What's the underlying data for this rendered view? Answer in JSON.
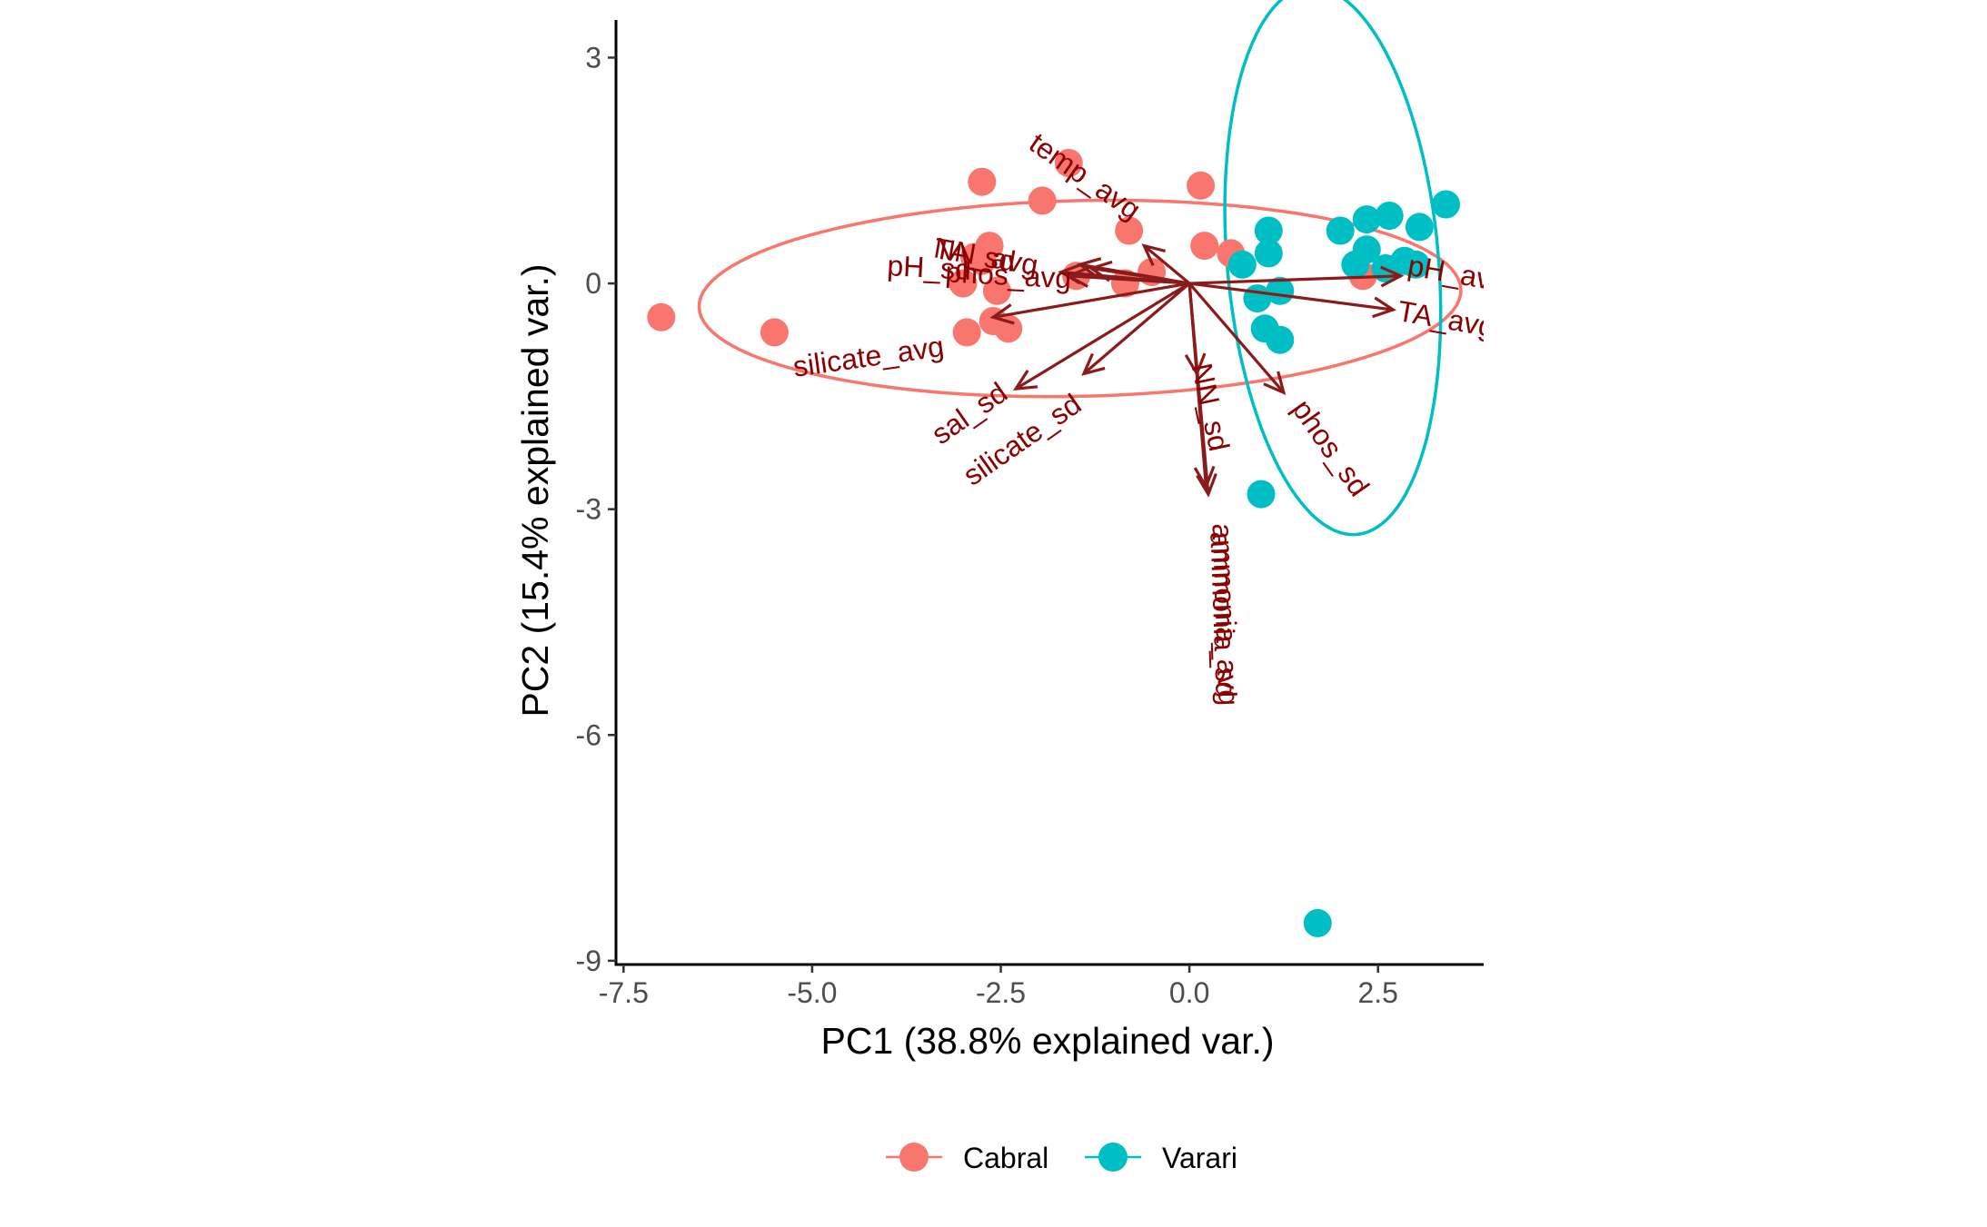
{
  "chart_data": {
    "type": "scatter",
    "xlabel": "PC1 (38.8% explained var.)",
    "ylabel": "PC2 (15.4% explained var.)",
    "xlim": [
      -7.6,
      3.9
    ],
    "ylim": [
      -9.05,
      3.5
    ],
    "x_ticks": [
      -7.5,
      -5.0,
      -2.5,
      0.0,
      2.5
    ],
    "x_tick_labels": [
      "-7.5",
      "-5.0",
      "-2.5",
      "0.0",
      "2.5"
    ],
    "y_ticks": [
      3,
      0,
      -3,
      -6,
      -9
    ],
    "y_tick_labels": [
      "3",
      "0",
      "-3",
      "-6",
      "-9"
    ],
    "grid": false,
    "legend_position": "bottom",
    "colors": {
      "Cabral": "#F8766D",
      "Varari": "#00BFC4",
      "loadings": "#8B1A1A",
      "loading_text": "#8B0000"
    },
    "series": [
      {
        "name": "Cabral",
        "points": [
          [
            -7.0,
            -0.45
          ],
          [
            -5.5,
            -0.65
          ],
          [
            -2.75,
            1.35
          ],
          [
            -1.6,
            1.6
          ],
          [
            -1.95,
            1.1
          ],
          [
            0.15,
            1.3
          ],
          [
            -0.8,
            0.7
          ],
          [
            0.2,
            0.5
          ],
          [
            0.55,
            0.4
          ],
          [
            -2.65,
            0.5
          ],
          [
            -2.75,
            0.3
          ],
          [
            -2.85,
            0.35
          ],
          [
            -3.0,
            0.0
          ],
          [
            -1.5,
            0.1
          ],
          [
            -0.5,
            0.15
          ],
          [
            -0.85,
            0.0
          ],
          [
            -2.55,
            -0.1
          ],
          [
            -2.6,
            -0.5
          ],
          [
            -2.4,
            -0.6
          ],
          [
            -2.95,
            -0.65
          ],
          [
            2.3,
            0.1
          ]
        ]
      },
      {
        "name": "Varari",
        "points": [
          [
            3.4,
            1.05
          ],
          [
            2.65,
            0.9
          ],
          [
            2.35,
            0.85
          ],
          [
            3.05,
            0.75
          ],
          [
            2.0,
            0.7
          ],
          [
            1.05,
            0.7
          ],
          [
            2.35,
            0.45
          ],
          [
            1.05,
            0.4
          ],
          [
            2.2,
            0.25
          ],
          [
            2.6,
            0.2
          ],
          [
            2.85,
            0.3
          ],
          [
            3.0,
            0.25
          ],
          [
            0.7,
            0.25
          ],
          [
            1.2,
            -0.1
          ],
          [
            0.9,
            -0.2
          ],
          [
            1.0,
            -0.6
          ],
          [
            1.2,
            -0.75
          ],
          [
            0.95,
            -2.8
          ],
          [
            1.7,
            -8.5
          ]
        ]
      }
    ],
    "ellipses": [
      {
        "name": "Cabral",
        "center": [
          -1.45,
          -0.2
        ],
        "semi_axes": [
          5.05,
          1.3
        ],
        "angle_deg": 1.3
      },
      {
        "name": "Varari",
        "center": [
          1.9,
          0.3
        ],
        "semi_axes": [
          3.65,
          1.4
        ],
        "angle_deg": 95
      }
    ],
    "loadings": [
      {
        "label": "temp_avg",
        "end": [
          -0.6,
          0.5
        ],
        "label_pos": [
          -1.4,
          1.4
        ],
        "label_angle": 35
      },
      {
        "label": "TA_sd",
        "end": [
          -1.3,
          0.2
        ],
        "label_pos": [
          -2.85,
          0.35
        ],
        "label_angle": 10
      },
      {
        "label": "NN_avg",
        "end": [
          -1.45,
          0.25
        ],
        "label_pos": [
          -2.7,
          0.33
        ],
        "label_angle": 10
      },
      {
        "label": "pH_sd",
        "end": [
          -1.7,
          0.15
        ],
        "label_pos": [
          -3.45,
          0.18
        ],
        "label_angle": 3
      },
      {
        "label": "phos_avg",
        "end": [
          -1.6,
          0.1
        ],
        "label_pos": [
          -2.4,
          0.08
        ],
        "label_angle": 3
      },
      {
        "label": "silicate_avg",
        "end": [
          -2.6,
          -0.45
        ],
        "label_pos": [
          -4.25,
          -1.0
        ],
        "label_angle": -8
      },
      {
        "label": "sal_sd",
        "end": [
          -2.3,
          -1.4
        ],
        "label_pos": [
          -2.9,
          -1.75
        ],
        "label_angle": -35
      },
      {
        "label": "silicate_sd",
        "end": [
          -1.4,
          -1.2
        ],
        "label_pos": [
          -2.2,
          -2.1
        ],
        "label_angle": -35
      },
      {
        "label": "NN_sd",
        "end": [
          0.1,
          -1.2
        ],
        "label_pos": [
          0.25,
          -1.65
        ],
        "label_angle": 78
      },
      {
        "label": "ammonia_avg",
        "end": [
          0.25,
          -2.8
        ],
        "label_pos": [
          0.45,
          -4.4
        ],
        "label_angle": 88
      },
      {
        "label": "ammonia_sd",
        "end": [
          0.22,
          -2.7
        ],
        "label_pos": [
          0.42,
          -4.4
        ],
        "label_angle": 88
      },
      {
        "label": "phos_sd",
        "end": [
          1.25,
          -1.45
        ],
        "label_pos": [
          1.85,
          -2.2
        ],
        "label_angle": 55
      },
      {
        "label": "pH_avg",
        "end": [
          2.8,
          0.1
        ],
        "label_pos": [
          3.55,
          0.1
        ],
        "label_angle": 10
      },
      {
        "label": "TA_avg",
        "end": [
          2.7,
          -0.35
        ],
        "label_pos": [
          3.4,
          -0.5
        ],
        "label_angle": 10
      }
    ],
    "loading_origin": [
      0.0,
      0.0
    ],
    "legend": [
      {
        "name": "Cabral"
      },
      {
        "name": "Varari"
      }
    ]
  }
}
